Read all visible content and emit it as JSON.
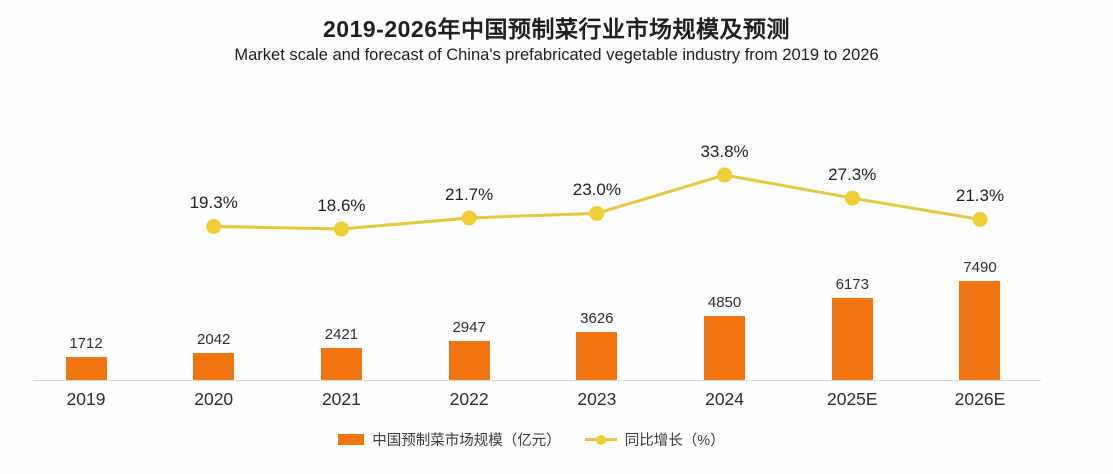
{
  "header": {
    "title": "2019-2026年中国预制菜行业市场规模及预测",
    "subtitle": "Market scale and forecast of China's prefabricated vegetable industry from 2019 to 2026"
  },
  "colors": {
    "bar": "#f0740f",
    "line": "#e5c83b",
    "marker": "#f2cc33",
    "axis": "#d9d9d9"
  },
  "chart_data": {
    "type": "bar",
    "subtype": "bar+line combo",
    "title": "2019-2026年中国预制菜行业市场规模及预测",
    "subtitle_en": "Market scale and forecast of China's prefabricated vegetable industry from 2019 to 2026",
    "categories": [
      "2019",
      "2020",
      "2021",
      "2022",
      "2023",
      "2024",
      "2025E",
      "2026E"
    ],
    "series": [
      {
        "name": "中国预制菜市场规模（亿元）",
        "type": "bar",
        "unit": "亿元",
        "values": [
          1712,
          2042,
          2421,
          2947,
          3626,
          4850,
          6173,
          7490
        ]
      },
      {
        "name": "同比增长（%）",
        "type": "line",
        "unit": "%",
        "values": [
          null,
          19.3,
          18.6,
          21.7,
          23.0,
          33.8,
          27.3,
          21.3
        ]
      }
    ],
    "bar_value_labels": [
      "1712",
      "2042",
      "2421",
      "2947",
      "3626",
      "4850",
      "6173",
      "7490"
    ],
    "line_value_labels": [
      "19.3%",
      "18.6%",
      "21.7%",
      "23.0%",
      "33.8%",
      "27.3%",
      "21.3%"
    ],
    "ylim_bar": [
      0,
      7490
    ],
    "grid": false,
    "y_axis_visible": false,
    "legend_position": "bottom"
  },
  "legend": {
    "bar_label": "中国预制菜市场规模（亿元）",
    "line_label": "同比增长（%）"
  }
}
